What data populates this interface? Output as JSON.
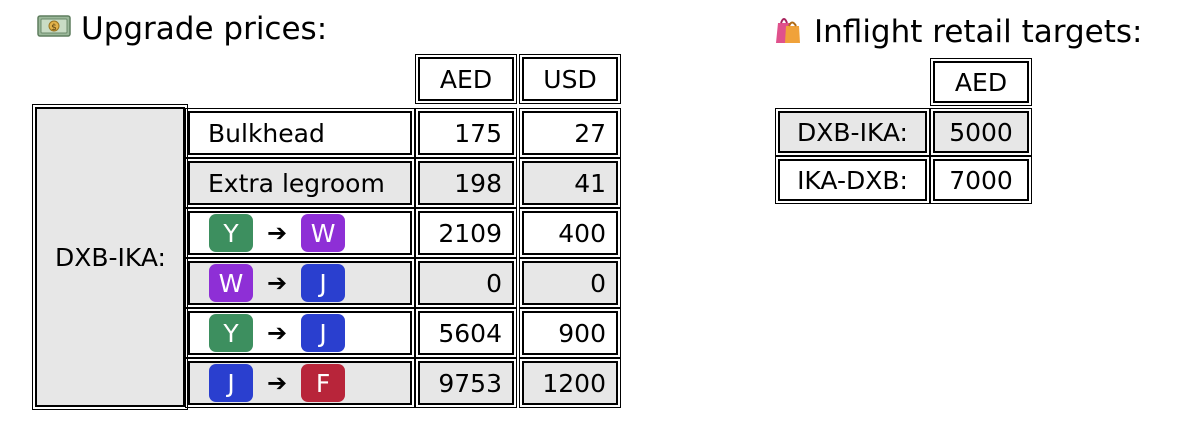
{
  "upgrade": {
    "title": "Upgrade prices:",
    "icon": "money-banknote-icon",
    "headers": [
      "AED",
      "USD"
    ],
    "route": "DXB-IKA:",
    "rows": [
      {
        "type": "text",
        "label": "Bulkhead",
        "aed": "175",
        "usd": "27"
      },
      {
        "type": "text",
        "label": "Extra legroom",
        "aed": "198",
        "usd": "41"
      },
      {
        "type": "class",
        "from": "Y",
        "to": "W",
        "aed": "2109",
        "usd": "400"
      },
      {
        "type": "class",
        "from": "W",
        "to": "J",
        "aed": "0",
        "usd": "0"
      },
      {
        "type": "class",
        "from": "Y",
        "to": "J",
        "aed": "5604",
        "usd": "900"
      },
      {
        "type": "class",
        "from": "J",
        "to": "F",
        "aed": "9753",
        "usd": "1200"
      }
    ],
    "arrow": "➔"
  },
  "retail": {
    "title": "Inflight retail targets:",
    "icon": "shopping-bags-icon",
    "header": "AED",
    "rows": [
      {
        "route": "DXB-IKA:",
        "aed": "5000"
      },
      {
        "route": "IKA-DXB:",
        "aed": "7000"
      }
    ]
  },
  "class_colors": {
    "Y": "#3d8f5f",
    "W": "#8e2fd6",
    "J": "#2a3fcf",
    "F": "#b8253a"
  }
}
